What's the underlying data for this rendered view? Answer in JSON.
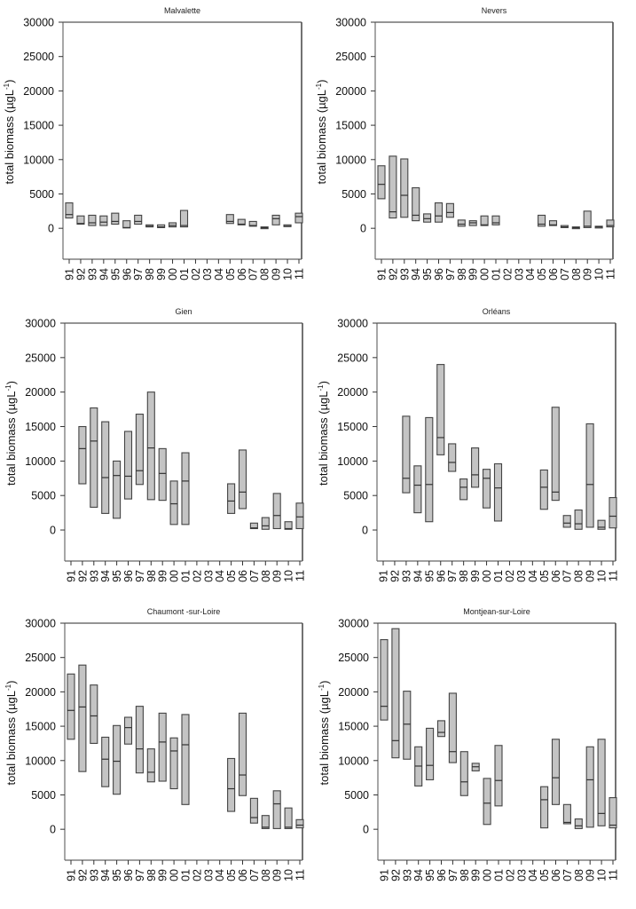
{
  "chart_data": [
    {
      "type": "box",
      "title": "Malvalette",
      "ylabel": "total biomass (µgL",
      "ylabel_sup": "-1",
      "ylabel_close": ")",
      "ylim": [
        -4500,
        30000
      ],
      "yticks": [
        0,
        5000,
        10000,
        15000,
        20000,
        25000,
        30000
      ],
      "categories": [
        "91",
        "92",
        "93",
        "94",
        "95",
        "96",
        "97",
        "98",
        "99",
        "00",
        "01",
        "02",
        "03",
        "04",
        "05",
        "06",
        "07",
        "08",
        "09",
        "10",
        "11"
      ],
      "boxes": [
        {
          "year": "91",
          "low": 1500,
          "median": 2000,
          "high": 3700
        },
        {
          "year": "92",
          "low": 600,
          "median": 700,
          "high": 1800
        },
        {
          "year": "93",
          "low": 400,
          "median": 800,
          "high": 1900
        },
        {
          "year": "94",
          "low": 400,
          "median": 900,
          "high": 1800
        },
        {
          "year": "95",
          "low": 600,
          "median": 1000,
          "high": 2200
        },
        {
          "year": "96",
          "low": 50,
          "median": 100,
          "high": 1100
        },
        {
          "year": "97",
          "low": 600,
          "median": 1000,
          "high": 1900
        },
        {
          "year": "98",
          "low": 200,
          "median": 300,
          "high": 500
        },
        {
          "year": "99",
          "low": 100,
          "median": 200,
          "high": 500
        },
        {
          "year": "00",
          "low": 200,
          "median": 400,
          "high": 800
        },
        {
          "year": "01",
          "low": 200,
          "median": 400,
          "high": 2600
        },
        {
          "year": "05",
          "low": 700,
          "median": 1000,
          "high": 2000
        },
        {
          "year": "06",
          "low": 500,
          "median": 600,
          "high": 1300
        },
        {
          "year": "07",
          "low": 300,
          "median": 400,
          "high": 1000
        },
        {
          "year": "08",
          "low": 50,
          "median": 100,
          "high": 200
        },
        {
          "year": "09",
          "low": 500,
          "median": 1400,
          "high": 1900
        },
        {
          "year": "10",
          "low": 300,
          "median": 300,
          "high": 500
        },
        {
          "year": "11",
          "low": 800,
          "median": 1700,
          "high": 2200
        }
      ]
    },
    {
      "type": "box",
      "title": "Nevers",
      "ylabel": "total biomass (µgL",
      "ylabel_sup": "-1",
      "ylabel_close": ")",
      "ylim": [
        -4500,
        30000
      ],
      "yticks": [
        0,
        5000,
        10000,
        15000,
        20000,
        25000,
        30000
      ],
      "categories": [
        "91",
        "92",
        "93",
        "94",
        "95",
        "96",
        "97",
        "98",
        "99",
        "00",
        "01",
        "02",
        "03",
        "04",
        "05",
        "06",
        "07",
        "08",
        "09",
        "10",
        "11"
      ],
      "boxes": [
        {
          "year": "91",
          "low": 4300,
          "median": 6400,
          "high": 9100
        },
        {
          "year": "92",
          "low": 1500,
          "median": 2400,
          "high": 10500
        },
        {
          "year": "93",
          "low": 1600,
          "median": 4800,
          "high": 10100
        },
        {
          "year": "94",
          "low": 1100,
          "median": 1900,
          "high": 5900
        },
        {
          "year": "95",
          "low": 900,
          "median": 1400,
          "high": 2100
        },
        {
          "year": "96",
          "low": 900,
          "median": 1800,
          "high": 3700
        },
        {
          "year": "97",
          "low": 1600,
          "median": 2300,
          "high": 3600
        },
        {
          "year": "98",
          "low": 300,
          "median": 600,
          "high": 1200
        },
        {
          "year": "99",
          "low": 400,
          "median": 800,
          "high": 1100
        },
        {
          "year": "00",
          "low": 400,
          "median": 500,
          "high": 1800
        },
        {
          "year": "01",
          "low": 500,
          "median": 800,
          "high": 1800
        },
        {
          "year": "05",
          "low": 300,
          "median": 600,
          "high": 1900
        },
        {
          "year": "06",
          "low": 400,
          "median": 500,
          "high": 1100
        },
        {
          "year": "07",
          "low": 100,
          "median": 200,
          "high": 400
        },
        {
          "year": "08",
          "low": 50,
          "median": 100,
          "high": 200
        },
        {
          "year": "09",
          "low": 100,
          "median": 300,
          "high": 2500
        },
        {
          "year": "10",
          "low": 100,
          "median": 200,
          "high": 300
        },
        {
          "year": "11",
          "low": 200,
          "median": 400,
          "high": 1200
        }
      ]
    },
    {
      "type": "box",
      "title": "Gien",
      "ylabel": "total biomass (µgL",
      "ylabel_sup": "-1",
      "ylabel_close": ")",
      "ylim": [
        -4500,
        30000
      ],
      "yticks": [
        0,
        5000,
        10000,
        15000,
        20000,
        25000,
        30000
      ],
      "categories": [
        "91",
        "92",
        "93",
        "94",
        "95",
        "96",
        "97",
        "98",
        "99",
        "00",
        "01",
        "02",
        "03",
        "04",
        "05",
        "06",
        "07",
        "08",
        "09",
        "10",
        "11"
      ],
      "boxes": [
        {
          "year": "92",
          "low": 6700,
          "median": 11800,
          "high": 15000
        },
        {
          "year": "93",
          "low": 3300,
          "median": 12900,
          "high": 17700
        },
        {
          "year": "94",
          "low": 2400,
          "median": 7600,
          "high": 15700
        },
        {
          "year": "95",
          "low": 1700,
          "median": 7900,
          "high": 10000
        },
        {
          "year": "96",
          "low": 4500,
          "median": 7800,
          "high": 14300
        },
        {
          "year": "97",
          "low": 6600,
          "median": 8600,
          "high": 16800
        },
        {
          "year": "98",
          "low": 4400,
          "median": 11900,
          "high": 20000
        },
        {
          "year": "99",
          "low": 4300,
          "median": 8200,
          "high": 11800
        },
        {
          "year": "00",
          "low": 800,
          "median": 3800,
          "high": 7100
        },
        {
          "year": "01",
          "low": 800,
          "median": 7100,
          "high": 11200
        },
        {
          "year": "05",
          "low": 2400,
          "median": 4200,
          "high": 6700
        },
        {
          "year": "06",
          "low": 3100,
          "median": 5500,
          "high": 11600
        },
        {
          "year": "07",
          "low": 200,
          "median": 300,
          "high": 1000
        },
        {
          "year": "08",
          "low": 100,
          "median": 600,
          "high": 1800
        },
        {
          "year": "09",
          "low": 200,
          "median": 2100,
          "high": 5300
        },
        {
          "year": "10",
          "low": 100,
          "median": 200,
          "high": 1200
        },
        {
          "year": "11",
          "low": 200,
          "median": 1900,
          "high": 3900
        }
      ]
    },
    {
      "type": "box",
      "title": "Orléans",
      "ylabel": "total biomass (µgL",
      "ylabel_sup": "-1",
      "ylabel_close": ")",
      "ylim": [
        -4500,
        30000
      ],
      "yticks": [
        0,
        5000,
        10000,
        15000,
        20000,
        25000,
        30000
      ],
      "categories": [
        "91",
        "92",
        "93",
        "94",
        "95",
        "96",
        "97",
        "98",
        "99",
        "00",
        "01",
        "02",
        "03",
        "04",
        "05",
        "06",
        "07",
        "08",
        "09",
        "10",
        "11"
      ],
      "boxes": [
        {
          "year": "93",
          "low": 5400,
          "median": 7500,
          "high": 16500
        },
        {
          "year": "94",
          "low": 2500,
          "median": 6500,
          "high": 9300
        },
        {
          "year": "95",
          "low": 1200,
          "median": 6600,
          "high": 16300
        },
        {
          "year": "96",
          "low": 10900,
          "median": 13400,
          "high": 24000
        },
        {
          "year": "97",
          "low": 8500,
          "median": 9800,
          "high": 12500
        },
        {
          "year": "98",
          "low": 4400,
          "median": 6200,
          "high": 7400
        },
        {
          "year": "99",
          "low": 6200,
          "median": 8000,
          "high": 11900
        },
        {
          "year": "00",
          "low": 3200,
          "median": 7500,
          "high": 8800
        },
        {
          "year": "01",
          "low": 1300,
          "median": 6100,
          "high": 9600
        },
        {
          "year": "05",
          "low": 3000,
          "median": 6200,
          "high": 8700
        },
        {
          "year": "06",
          "low": 4300,
          "median": 5500,
          "high": 17800
        },
        {
          "year": "07",
          "low": 400,
          "median": 1000,
          "high": 2100
        },
        {
          "year": "08",
          "low": 100,
          "median": 900,
          "high": 2900
        },
        {
          "year": "09",
          "low": 400,
          "median": 6600,
          "high": 15400
        },
        {
          "year": "10",
          "low": 100,
          "median": 400,
          "high": 1400
        },
        {
          "year": "11",
          "low": 300,
          "median": 2000,
          "high": 4700
        }
      ]
    },
    {
      "type": "box",
      "title": "Chaumont -sur-Loire",
      "ylabel": "total biomass (µgL",
      "ylabel_sup": "-1",
      "ylabel_close": ")",
      "ylim": [
        -4500,
        30000
      ],
      "yticks": [
        0,
        5000,
        10000,
        15000,
        20000,
        25000,
        30000
      ],
      "categories": [
        "91",
        "92",
        "93",
        "94",
        "95",
        "96",
        "97",
        "98",
        "99",
        "00",
        "01",
        "02",
        "03",
        "04",
        "05",
        "06",
        "07",
        "08",
        "09",
        "10",
        "11"
      ],
      "boxes": [
        {
          "year": "91",
          "low": 13100,
          "median": 17300,
          "high": 22600
        },
        {
          "year": "92",
          "low": 8400,
          "median": 17800,
          "high": 23900
        },
        {
          "year": "93",
          "low": 12500,
          "median": 16500,
          "high": 21000
        },
        {
          "year": "94",
          "low": 6200,
          "median": 10200,
          "high": 13400
        },
        {
          "year": "95",
          "low": 5100,
          "median": 9900,
          "high": 15100
        },
        {
          "year": "96",
          "low": 12400,
          "median": 14800,
          "high": 16300
        },
        {
          "year": "97",
          "low": 8200,
          "median": 11700,
          "high": 17900
        },
        {
          "year": "98",
          "low": 6900,
          "median": 8300,
          "high": 11700
        },
        {
          "year": "99",
          "low": 7000,
          "median": 12700,
          "high": 16900
        },
        {
          "year": "00",
          "low": 5900,
          "median": 11400,
          "high": 13300
        },
        {
          "year": "01",
          "low": 3600,
          "median": 12300,
          "high": 16700
        },
        {
          "year": "05",
          "low": 2600,
          "median": 5900,
          "high": 10300
        },
        {
          "year": "06",
          "low": 4900,
          "median": 7900,
          "high": 16900
        },
        {
          "year": "07",
          "low": 900,
          "median": 1700,
          "high": 4500
        },
        {
          "year": "08",
          "low": 100,
          "median": 300,
          "high": 2000
        },
        {
          "year": "09",
          "low": 100,
          "median": 3700,
          "high": 5600
        },
        {
          "year": "10",
          "low": 100,
          "median": 300,
          "high": 3100
        },
        {
          "year": "11",
          "low": 200,
          "median": 600,
          "high": 1400
        }
      ]
    },
    {
      "type": "box",
      "title": "Montjean-sur-Loire",
      "ylabel": "total biomass (µgL",
      "ylabel_sup": "-1",
      "ylabel_close": ")",
      "ylim": [
        -4500,
        30000
      ],
      "yticks": [
        0,
        5000,
        10000,
        15000,
        20000,
        25000,
        30000
      ],
      "categories": [
        "91",
        "92",
        "93",
        "94",
        "95",
        "96",
        "97",
        "98",
        "99",
        "00",
        "01",
        "02",
        "03",
        "04",
        "05",
        "06",
        "07",
        "08",
        "09",
        "10",
        "11"
      ],
      "boxes": [
        {
          "year": "91",
          "low": 15900,
          "median": 17900,
          "high": 27600
        },
        {
          "year": "92",
          "low": 10400,
          "median": 12900,
          "high": 29200
        },
        {
          "year": "93",
          "low": 10200,
          "median": 15300,
          "high": 20100
        },
        {
          "year": "94",
          "low": 6300,
          "median": 9200,
          "high": 12000
        },
        {
          "year": "95",
          "low": 7200,
          "median": 9300,
          "high": 14700
        },
        {
          "year": "96",
          "low": 13500,
          "median": 14100,
          "high": 15800
        },
        {
          "year": "97",
          "low": 9700,
          "median": 11300,
          "high": 19800
        },
        {
          "year": "98",
          "low": 4900,
          "median": 6900,
          "high": 11300
        },
        {
          "year": "99",
          "low": 8500,
          "median": 9100,
          "high": 9600
        },
        {
          "year": "00",
          "low": 700,
          "median": 3800,
          "high": 7400
        },
        {
          "year": "01",
          "low": 3400,
          "median": 7100,
          "high": 12200
        },
        {
          "year": "05",
          "low": 200,
          "median": 4300,
          "high": 6200
        },
        {
          "year": "06",
          "low": 3600,
          "median": 7500,
          "high": 13100
        },
        {
          "year": "07",
          "low": 800,
          "median": 1000,
          "high": 3600
        },
        {
          "year": "08",
          "low": 100,
          "median": 500,
          "high": 1500
        },
        {
          "year": "09",
          "low": 300,
          "median": 7200,
          "high": 12000
        },
        {
          "year": "10",
          "low": 500,
          "median": 2300,
          "high": 13100
        },
        {
          "year": "11",
          "low": 200,
          "median": 600,
          "high": 4600
        }
      ]
    }
  ]
}
